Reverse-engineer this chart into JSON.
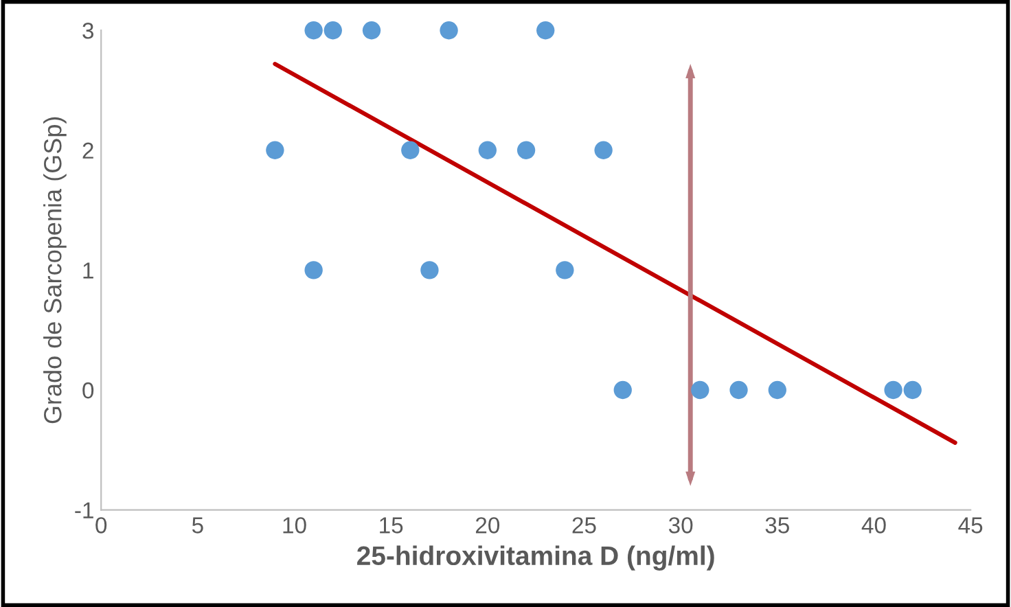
{
  "chart_data": {
    "type": "scatter",
    "xlabel": "25-hidroxivitamina D (ng/ml)",
    "ylabel": "Grado de Sarcopenia (GSp)",
    "xlim": [
      0,
      45
    ],
    "xticks": [
      0,
      5,
      10,
      15,
      20,
      25,
      30,
      35,
      40,
      45
    ],
    "ylim": [
      -1,
      3
    ],
    "yticks": [
      -1,
      0,
      1,
      2,
      3
    ],
    "grid": false,
    "series": [
      {
        "marker": "circle",
        "color": "#5b9bd5",
        "x": [
          9,
          11,
          12,
          14,
          18,
          23,
          11,
          16,
          17,
          20,
          22,
          24,
          26,
          27,
          31,
          33,
          35,
          41,
          42
        ],
        "values": [
          2,
          3,
          3,
          3,
          3,
          3,
          1,
          2,
          1,
          2,
          2,
          1,
          2,
          0,
          0,
          0,
          0,
          0,
          0
        ]
      },
      {
        "type": "line",
        "color": "#c00000",
        "x": [
          9,
          44.2
        ],
        "values": [
          2.72,
          -0.44
        ],
        "line_style": "solid"
      }
    ],
    "ref_lines": [
      {
        "axis": "x",
        "value": 30.5,
        "color": "#b97b80"
      }
    ]
  }
}
